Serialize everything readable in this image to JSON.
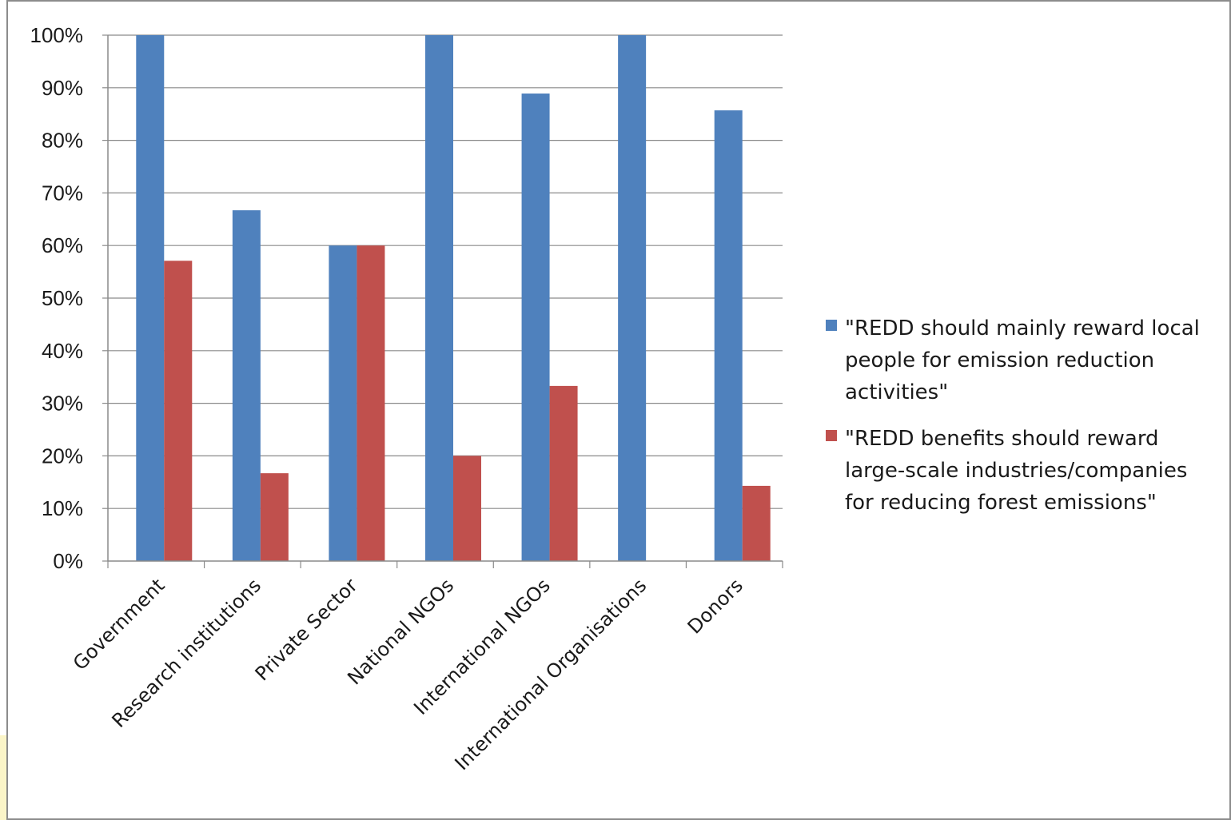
{
  "chart_data": {
    "type": "bar",
    "categories": [
      "Government",
      "Research institutions",
      "Private Sector",
      "National NGOs",
      "International NGOs",
      "International Organisations",
      "Donors"
    ],
    "series": [
      {
        "name": "\"REDD should mainly reward local people for emission reduction activities\"",
        "legend_lines": [
          "\"REDD should mainly reward local",
          "people for emission reduction",
          "activities\""
        ],
        "color": "#4f81bd",
        "values": [
          100,
          66.7,
          60,
          100,
          88.9,
          100,
          85.7
        ]
      },
      {
        "name": "\"REDD benefits should reward large-scale industries/companies for reducing forest emissions\"",
        "legend_lines": [
          "\"REDD benefits should reward",
          "large-scale industries/companies",
          "for reducing forest emissions\""
        ],
        "color": "#c0504d",
        "values": [
          57.1,
          16.7,
          60,
          20,
          33.3,
          0,
          14.3
        ]
      }
    ],
    "ylim": [
      0,
      100
    ],
    "y_ticks": [
      0,
      10,
      20,
      30,
      40,
      50,
      60,
      70,
      80,
      90,
      100
    ],
    "y_tick_labels": [
      "0%",
      "10%",
      "20%",
      "30%",
      "40%",
      "50%",
      "60%",
      "70%",
      "80%",
      "90%",
      "100%"
    ],
    "grid": true,
    "legend_position": "right",
    "title": "",
    "xlabel": "",
    "ylabel": ""
  }
}
